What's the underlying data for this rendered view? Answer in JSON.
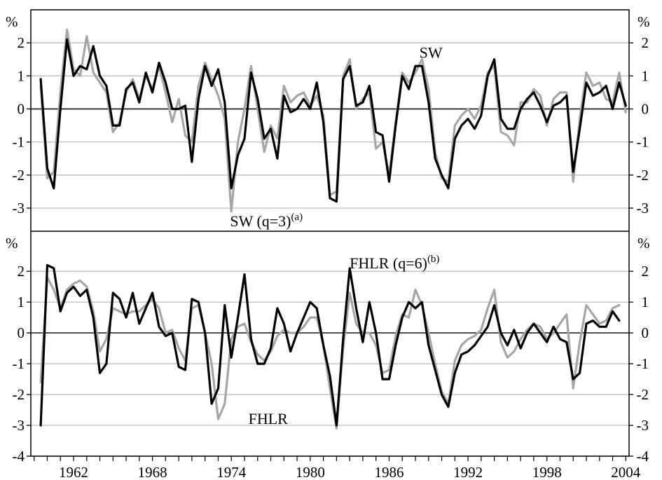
{
  "figure": {
    "unit_label": "%",
    "x_tick_labels": [
      "1962",
      "1968",
      "1974",
      "1980",
      "1986",
      "1992",
      "1998",
      "2004"
    ],
    "colors": {
      "series_dark": "#000000",
      "series_light": "#a6a6a6",
      "grid": "#bdbdbd",
      "axis": "#000000"
    }
  },
  "chart_data": [
    {
      "type": "line",
      "panel": "top",
      "xlim": [
        1958.75,
        2004.25
      ],
      "ylim": [
        -3.7,
        3.0
      ],
      "yticks": [
        2,
        1,
        0,
        -1,
        -2,
        -3
      ],
      "ytick_labels": [
        "2",
        "1",
        "0",
        "-1",
        "-2",
        "-3"
      ],
      "grid": true,
      "annotations": [
        {
          "text": "SW",
          "sup": "",
          "x": 1988.3,
          "y": 1.55
        },
        {
          "text": "SW (q=3)",
          "sup": "(a)",
          "x": 1973.9,
          "y": -3.55
        }
      ],
      "series": [
        {
          "label_ref": "SW",
          "color": "#000000",
          "x": [
            1959.5,
            1960.0,
            1960.5,
            1961.0,
            1961.5,
            1962.0,
            1962.5,
            1963.0,
            1963.5,
            1964.0,
            1964.5,
            1965.0,
            1965.5,
            1966.0,
            1966.5,
            1967.0,
            1967.5,
            1968.0,
            1968.5,
            1969.0,
            1969.5,
            1970.0,
            1970.5,
            1971.0,
            1971.5,
            1972.0,
            1972.5,
            1973.0,
            1973.5,
            1974.0,
            1974.5,
            1975.0,
            1975.5,
            1976.0,
            1976.5,
            1977.0,
            1977.5,
            1978.0,
            1978.5,
            1979.0,
            1979.5,
            1980.0,
            1980.5,
            1981.0,
            1981.5,
            1982.0,
            1982.5,
            1983.0,
            1983.5,
            1984.0,
            1984.5,
            1985.0,
            1985.5,
            1986.0,
            1986.5,
            1987.0,
            1987.5,
            1988.0,
            1988.5,
            1989.0,
            1989.5,
            1990.0,
            1990.5,
            1991.0,
            1991.5,
            1992.0,
            1992.5,
            1993.0,
            1993.5,
            1994.0,
            1994.5,
            1995.0,
            1995.5,
            1996.0,
            1996.5,
            1997.0,
            1997.5,
            1998.0,
            1998.5,
            1999.0,
            1999.5,
            2000.0,
            2000.5,
            2001.0,
            2001.5,
            2002.0,
            2002.5,
            2003.0,
            2003.5,
            2004.0
          ],
          "y": [
            0.9,
            -1.8,
            -2.4,
            0.0,
            2.1,
            1.0,
            1.3,
            1.2,
            1.9,
            1.0,
            0.7,
            -0.5,
            -0.5,
            0.6,
            0.8,
            0.2,
            1.1,
            0.5,
            1.4,
            0.8,
            0.0,
            0.0,
            0.1,
            -1.6,
            0.3,
            1.3,
            0.7,
            1.2,
            0.2,
            -2.4,
            -1.4,
            -0.9,
            1.1,
            0.3,
            -0.9,
            -0.6,
            -1.5,
            0.4,
            -0.1,
            0.0,
            0.3,
            0.0,
            0.8,
            -0.4,
            -2.7,
            -2.8,
            0.9,
            1.3,
            0.1,
            0.2,
            0.7,
            -0.7,
            -0.8,
            -2.2,
            -0.5,
            1.0,
            0.6,
            1.3,
            1.3,
            0.2,
            -1.5,
            -2.0,
            -2.4,
            -0.9,
            -0.5,
            -0.3,
            -0.6,
            -0.2,
            1.0,
            1.5,
            -0.3,
            -0.6,
            -0.6,
            0.0,
            0.3,
            0.5,
            0.1,
            -0.4,
            0.1,
            0.2,
            0.4,
            -1.9,
            -0.6,
            0.8,
            0.4,
            0.5,
            0.7,
            0.0,
            0.8,
            0.1
          ]
        },
        {
          "label_ref": "SW (q=3)",
          "color": "#a6a6a6",
          "x": [
            1959.5,
            1960.0,
            1960.5,
            1961.0,
            1961.5,
            1962.0,
            1962.5,
            1963.0,
            1963.5,
            1964.0,
            1964.5,
            1965.0,
            1965.5,
            1966.0,
            1966.5,
            1967.0,
            1967.5,
            1968.0,
            1968.5,
            1969.0,
            1969.5,
            1970.0,
            1970.5,
            1971.0,
            1971.5,
            1972.0,
            1972.5,
            1973.0,
            1973.5,
            1974.0,
            1974.5,
            1975.0,
            1975.5,
            1976.0,
            1976.5,
            1977.0,
            1977.5,
            1978.0,
            1978.5,
            1979.0,
            1979.5,
            1980.0,
            1980.5,
            1981.0,
            1981.5,
            1982.0,
            1982.5,
            1983.0,
            1983.5,
            1984.0,
            1984.5,
            1985.0,
            1985.5,
            1986.0,
            1986.5,
            1987.0,
            1987.5,
            1988.0,
            1988.5,
            1989.0,
            1989.5,
            1990.0,
            1990.5,
            1991.0,
            1991.5,
            1992.0,
            1992.5,
            1993.0,
            1993.5,
            1994.0,
            1994.5,
            1995.0,
            1995.5,
            1996.0,
            1996.5,
            1997.0,
            1997.5,
            1998.0,
            1998.5,
            1999.0,
            1999.5,
            2000.0,
            2000.5,
            2001.0,
            2001.5,
            2002.0,
            2002.5,
            2003.0,
            2003.5,
            2004.0
          ],
          "y": [
            0.7,
            -2.1,
            -1.9,
            0.5,
            2.4,
            1.2,
            1.0,
            2.2,
            1.1,
            0.8,
            0.5,
            -0.7,
            -0.4,
            0.5,
            0.9,
            0.3,
            1.0,
            0.6,
            1.3,
            0.5,
            -0.4,
            0.3,
            -0.8,
            -1.0,
            0.7,
            1.4,
            0.9,
            0.4,
            -0.3,
            -3.1,
            -1.0,
            0.0,
            1.3,
            0.0,
            -1.3,
            -0.5,
            -0.9,
            0.7,
            0.2,
            0.4,
            0.5,
            0.1,
            0.4,
            -0.2,
            -2.6,
            -2.5,
            1.0,
            1.5,
            0.0,
            0.3,
            0.5,
            -1.2,
            -1.0,
            -2.0,
            -0.4,
            1.1,
            0.8,
            1.1,
            1.5,
            0.6,
            -1.3,
            -2.1,
            -2.2,
            -0.5,
            -0.2,
            0.0,
            -0.3,
            0.1,
            1.1,
            1.3,
            -0.7,
            -0.8,
            -1.1,
            0.2,
            0.2,
            0.6,
            0.4,
            -0.5,
            0.3,
            0.5,
            0.5,
            -2.2,
            -0.3,
            1.1,
            0.7,
            0.8,
            0.3,
            0.2,
            1.1,
            -0.1
          ]
        }
      ]
    },
    {
      "type": "line",
      "panel": "bottom",
      "xlim": [
        1958.75,
        2004.25
      ],
      "ylim": [
        -4.0,
        3.3
      ],
      "yticks": [
        2,
        1,
        0,
        -1,
        -2,
        -3,
        -4
      ],
      "ytick_labels": [
        "2",
        "1",
        "0",
        "-1",
        "-2",
        "-3",
        "-4"
      ],
      "grid": true,
      "annotations": [
        {
          "text": "FHLR (q=6)",
          "sup": "(b)",
          "x": 1983.0,
          "y": 2.1
        },
        {
          "text": "FHLR",
          "sup": "",
          "x": 1975.3,
          "y": -2.95
        }
      ],
      "series": [
        {
          "label_ref": "FHLR (q=6)",
          "color": "#000000",
          "x": [
            1959.5,
            1960.0,
            1960.5,
            1961.0,
            1961.5,
            1962.0,
            1962.5,
            1963.0,
            1963.5,
            1964.0,
            1964.5,
            1965.0,
            1965.5,
            1966.0,
            1966.5,
            1967.0,
            1967.5,
            1968.0,
            1968.5,
            1969.0,
            1969.5,
            1970.0,
            1970.5,
            1971.0,
            1971.5,
            1972.0,
            1972.5,
            1973.0,
            1973.5,
            1974.0,
            1974.5,
            1975.0,
            1975.5,
            1976.0,
            1976.5,
            1977.0,
            1977.5,
            1978.0,
            1978.5,
            1979.0,
            1979.5,
            1980.0,
            1980.5,
            1981.0,
            1981.5,
            1982.0,
            1982.5,
            1983.0,
            1983.5,
            1984.0,
            1984.5,
            1985.0,
            1985.5,
            1986.0,
            1986.5,
            1987.0,
            1987.5,
            1988.0,
            1988.5,
            1989.0,
            1989.5,
            1990.0,
            1990.5,
            1991.0,
            1991.5,
            1992.0,
            1992.5,
            1993.0,
            1993.5,
            1994.0,
            1994.5,
            1995.0,
            1995.5,
            1996.0,
            1996.5,
            1997.0,
            1997.5,
            1998.0,
            1998.5,
            1999.0,
            1999.5,
            2000.0,
            2000.5,
            2001.0,
            2001.5,
            2002.0,
            2002.5,
            2003.0,
            2003.5
          ],
          "y": [
            -3.0,
            2.2,
            2.1,
            0.7,
            1.3,
            1.5,
            1.2,
            1.4,
            0.5,
            -1.3,
            -1.0,
            1.3,
            1.1,
            0.5,
            1.3,
            0.3,
            0.8,
            1.3,
            0.2,
            -0.1,
            0.0,
            -1.1,
            -1.2,
            1.1,
            1.0,
            0.0,
            -2.3,
            -1.8,
            0.9,
            -0.8,
            0.5,
            1.9,
            -0.2,
            -1.0,
            -1.0,
            -0.5,
            0.8,
            0.3,
            -0.6,
            0.0,
            0.5,
            1.0,
            0.8,
            -0.4,
            -1.4,
            -3.0,
            -0.2,
            2.1,
            0.8,
            -0.3,
            1.0,
            0.0,
            -1.5,
            -1.5,
            -0.4,
            0.5,
            1.0,
            0.8,
            1.0,
            -0.4,
            -1.2,
            -2.0,
            -2.4,
            -1.3,
            -0.7,
            -0.6,
            -0.4,
            -0.1,
            0.2,
            0.9,
            0.0,
            -0.4,
            0.1,
            -0.5,
            0.0,
            0.3,
            0.0,
            -0.3,
            0.2,
            -0.2,
            -0.3,
            -1.5,
            -1.3,
            0.3,
            0.4,
            0.2,
            0.2,
            0.7,
            0.4
          ]
        },
        {
          "label_ref": "FHLR",
          "color": "#a6a6a6",
          "x": [
            1959.5,
            1960.0,
            1960.5,
            1961.0,
            1961.5,
            1962.0,
            1962.5,
            1963.0,
            1963.5,
            1964.0,
            1964.5,
            1965.0,
            1965.5,
            1966.0,
            1966.5,
            1967.0,
            1967.5,
            1968.0,
            1968.5,
            1969.0,
            1969.5,
            1970.0,
            1970.5,
            1971.0,
            1971.5,
            1972.0,
            1972.5,
            1973.0,
            1973.5,
            1974.0,
            1974.5,
            1975.0,
            1975.5,
            1976.0,
            1976.5,
            1977.0,
            1977.5,
            1978.0,
            1978.5,
            1979.0,
            1979.5,
            1980.0,
            1980.5,
            1981.0,
            1981.5,
            1982.0,
            1982.5,
            1983.0,
            1983.5,
            1984.0,
            1984.5,
            1985.0,
            1985.5,
            1986.0,
            1986.5,
            1987.0,
            1987.5,
            1988.0,
            1988.5,
            1989.0,
            1989.5,
            1990.0,
            1990.5,
            1991.0,
            1991.5,
            1992.0,
            1992.5,
            1993.0,
            1993.5,
            1994.0,
            1994.5,
            1995.0,
            1995.5,
            1996.0,
            1996.5,
            1997.0,
            1997.5,
            1998.0,
            1998.5,
            1999.0,
            1999.5,
            2000.0,
            2000.5,
            2001.0,
            2001.5,
            2002.0,
            2002.5,
            2003.0,
            2003.5
          ],
          "y": [
            -1.6,
            1.8,
            1.4,
            0.8,
            1.4,
            1.6,
            1.7,
            1.5,
            0.7,
            -0.6,
            -0.2,
            0.8,
            0.7,
            0.6,
            0.7,
            0.7,
            0.9,
            1.1,
            0.8,
            0.0,
            0.1,
            -0.5,
            -0.9,
            0.8,
            0.9,
            0.0,
            -1.0,
            -2.8,
            -2.3,
            -0.2,
            0.2,
            0.3,
            -0.3,
            -0.7,
            -0.9,
            -0.6,
            -0.1,
            0.1,
            0.0,
            0.0,
            0.2,
            0.5,
            0.5,
            -0.4,
            -1.8,
            -3.1,
            -0.5,
            1.3,
            0.3,
            0.0,
            0.0,
            -0.4,
            -1.3,
            -1.2,
            -0.1,
            0.6,
            0.5,
            1.4,
            0.9,
            0.0,
            -1.0,
            -1.9,
            -2.3,
            -0.9,
            -0.4,
            -0.2,
            -0.1,
            0.1,
            0.8,
            1.4,
            -0.3,
            -0.8,
            -0.6,
            -0.2,
            0.1,
            0.3,
            0.2,
            -0.2,
            0.0,
            0.3,
            0.6,
            -1.8,
            -0.3,
            0.9,
            0.6,
            0.3,
            0.4,
            0.8,
            0.9
          ]
        }
      ]
    }
  ]
}
